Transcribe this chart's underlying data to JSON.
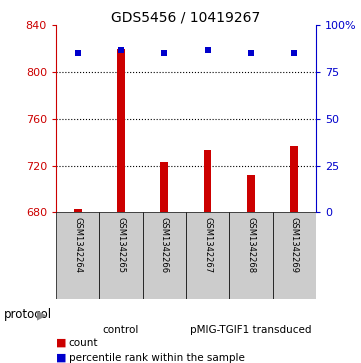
{
  "title": "GDS5456 / 10419267",
  "samples": [
    "GSM1342264",
    "GSM1342265",
    "GSM1342266",
    "GSM1342267",
    "GSM1342268",
    "GSM1342269"
  ],
  "counts": [
    683,
    820,
    723,
    733,
    712,
    737
  ],
  "percentiles": [
    85,
    87,
    85,
    87,
    85,
    85
  ],
  "ylim_left": [
    680,
    840
  ],
  "ylim_right": [
    0,
    100
  ],
  "yticks_left": [
    680,
    720,
    760,
    800,
    840
  ],
  "yticks_right": [
    0,
    25,
    50,
    75,
    100
  ],
  "bar_color": "#cc0000",
  "dot_color": "#0000cc",
  "groups": [
    {
      "label": "control",
      "start": 0,
      "end": 3,
      "color": "#ccffcc"
    },
    {
      "label": "pMIG-TGIF1 transduced",
      "start": 3,
      "end": 6,
      "color": "#44ee44"
    }
  ],
  "legend_items": [
    {
      "label": "count",
      "color": "#cc0000"
    },
    {
      "label": "percentile rank within the sample",
      "color": "#0000cc"
    }
  ],
  "protocol_label": "protocol",
  "background_color": "#ffffff",
  "sample_box_color": "#cccccc",
  "bar_width": 0.18
}
